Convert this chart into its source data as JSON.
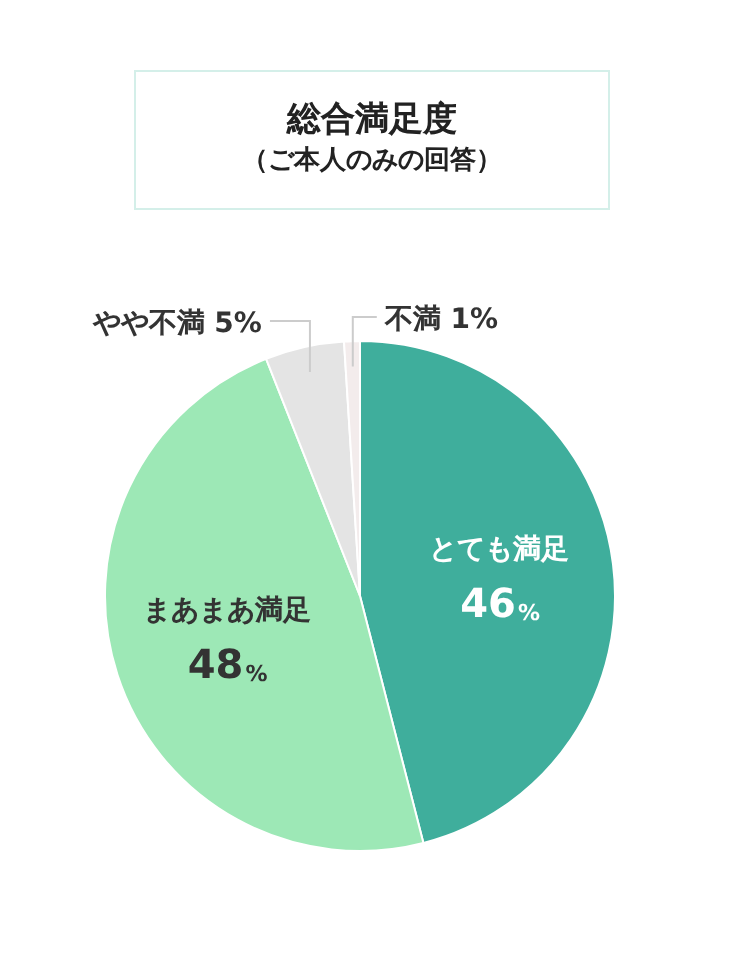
{
  "chart_data": {
    "type": "pie",
    "title": "総合満足度",
    "subtitle": "（ご本人のみの回答）",
    "categories": [
      "とても満足",
      "まあまあ満足",
      "やや不満",
      "不満"
    ],
    "values": [
      46,
      48,
      5,
      1
    ],
    "colors": [
      "#3fae9c",
      "#9de8b6",
      "#e4e4e4",
      "#f3ecec"
    ],
    "value_labels": [
      "46%",
      "48%",
      "5%",
      "1%"
    ],
    "legend": false
  }
}
